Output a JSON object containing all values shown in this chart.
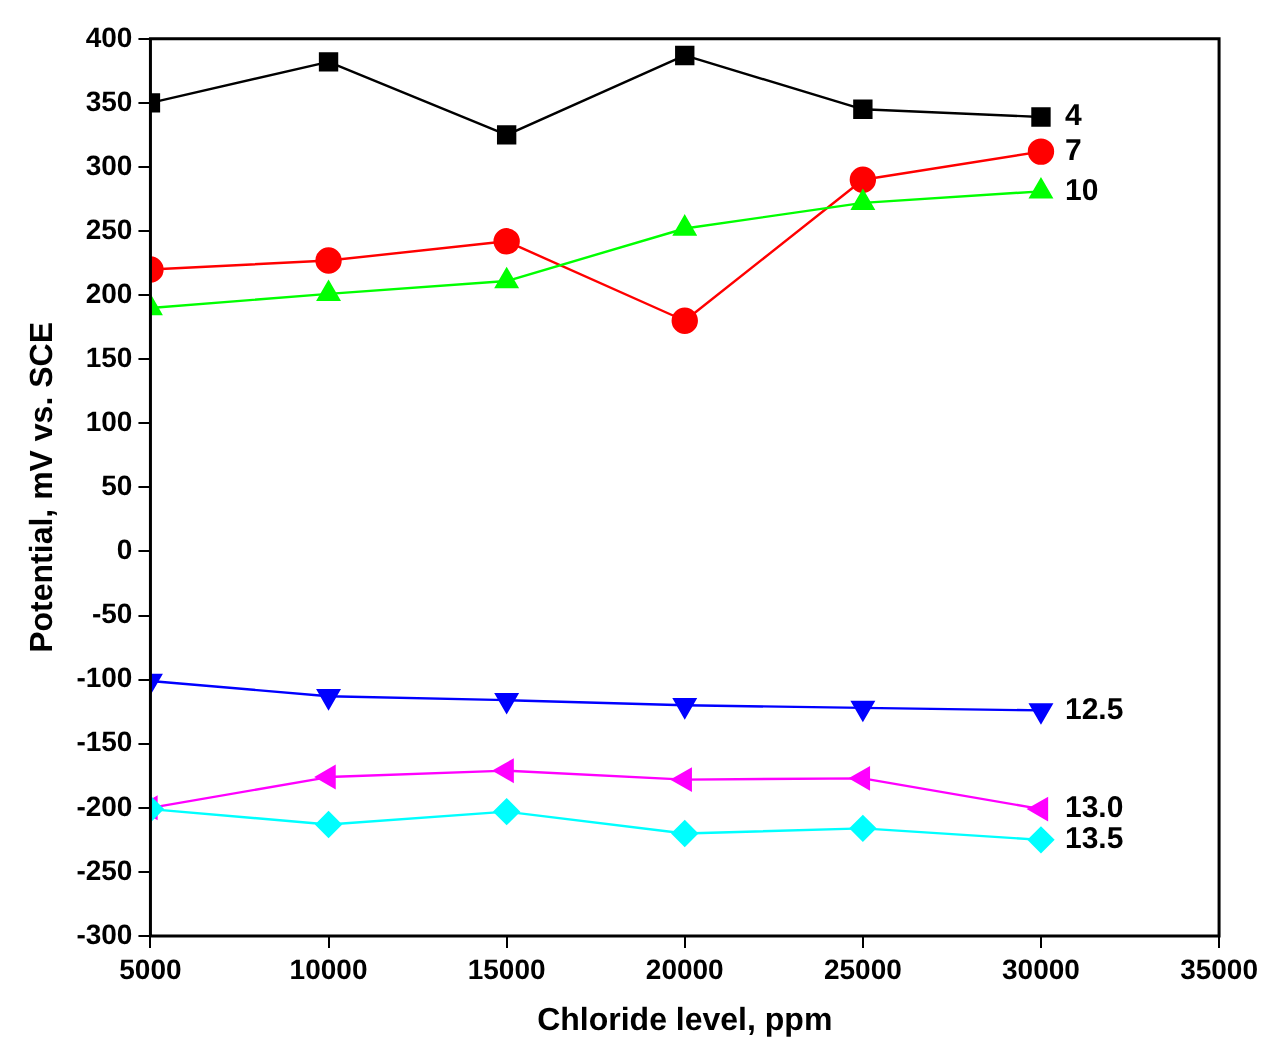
{
  "chart_data": {
    "type": "line",
    "xlabel": "Chloride level, ppm",
    "ylabel": "Potential, mV vs. SCE",
    "x": [
      5000,
      10000,
      15000,
      20000,
      25000,
      30000
    ],
    "series": [
      {
        "name": "4",
        "color": "#000000",
        "marker": "square",
        "values": [
          350,
          382,
          325,
          387,
          345,
          339
        ]
      },
      {
        "name": "7",
        "color": "#ff0000",
        "marker": "circle",
        "values": [
          220,
          227,
          242,
          180,
          290,
          312
        ]
      },
      {
        "name": "10",
        "color": "#00ff00",
        "marker": "triangle",
        "values": [
          190,
          201,
          211,
          252,
          272,
          281
        ]
      },
      {
        "name": "12.5",
        "color": "#0000ff",
        "marker": "triangle-down",
        "values": [
          -101,
          -113,
          -116,
          -120,
          -122,
          -124
        ]
      },
      {
        "name": "13.0",
        "color": "#ff00ff",
        "marker": "triangle-left",
        "values": [
          -200,
          -176,
          -171,
          -178,
          -177,
          -201
        ]
      },
      {
        "name": "13.5",
        "color": "#00ffff",
        "marker": "diamond",
        "values": [
          -201,
          -213,
          -203,
          -220,
          -216,
          -225
        ]
      }
    ],
    "xlim": [
      5000,
      35000
    ],
    "xticks": [
      5000,
      10000,
      15000,
      20000,
      25000,
      30000,
      35000
    ],
    "ylim": [
      -300,
      400
    ],
    "yticks": [
      -300,
      -250,
      -200,
      -150,
      -100,
      -50,
      0,
      50,
      100,
      150,
      200,
      250,
      300,
      350,
      400
    ],
    "grid": false,
    "legend": false,
    "line_style": "solid"
  }
}
